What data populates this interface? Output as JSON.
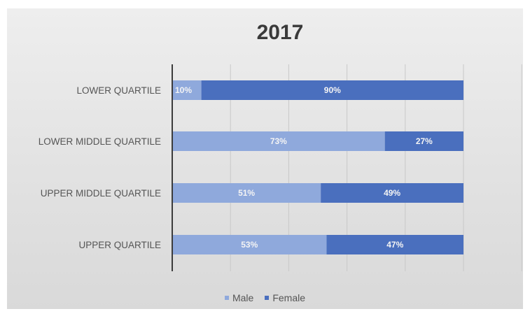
{
  "chart_data": {
    "type": "bar",
    "orientation": "horizontal",
    "stacked": true,
    "title": "2017",
    "categories": [
      "LOWER QUARTILE",
      "LOWER MIDDLE QUARTILE",
      "UPPER MIDDLE QUARTILE",
      "UPPER QUARTILE"
    ],
    "series": [
      {
        "name": "Male",
        "values": [
          10,
          73,
          51,
          53
        ],
        "labels": [
          "10%",
          "73%",
          "51%",
          "53%"
        ],
        "color": "#8fa9dc"
      },
      {
        "name": "Female",
        "values": [
          90,
          27,
          49,
          47
        ],
        "labels": [
          "90%",
          "27%",
          "49%",
          "47%"
        ],
        "color": "#4a6fbe"
      }
    ],
    "xlim": [
      0,
      100
    ],
    "grid": true,
    "legend_position": "bottom"
  }
}
